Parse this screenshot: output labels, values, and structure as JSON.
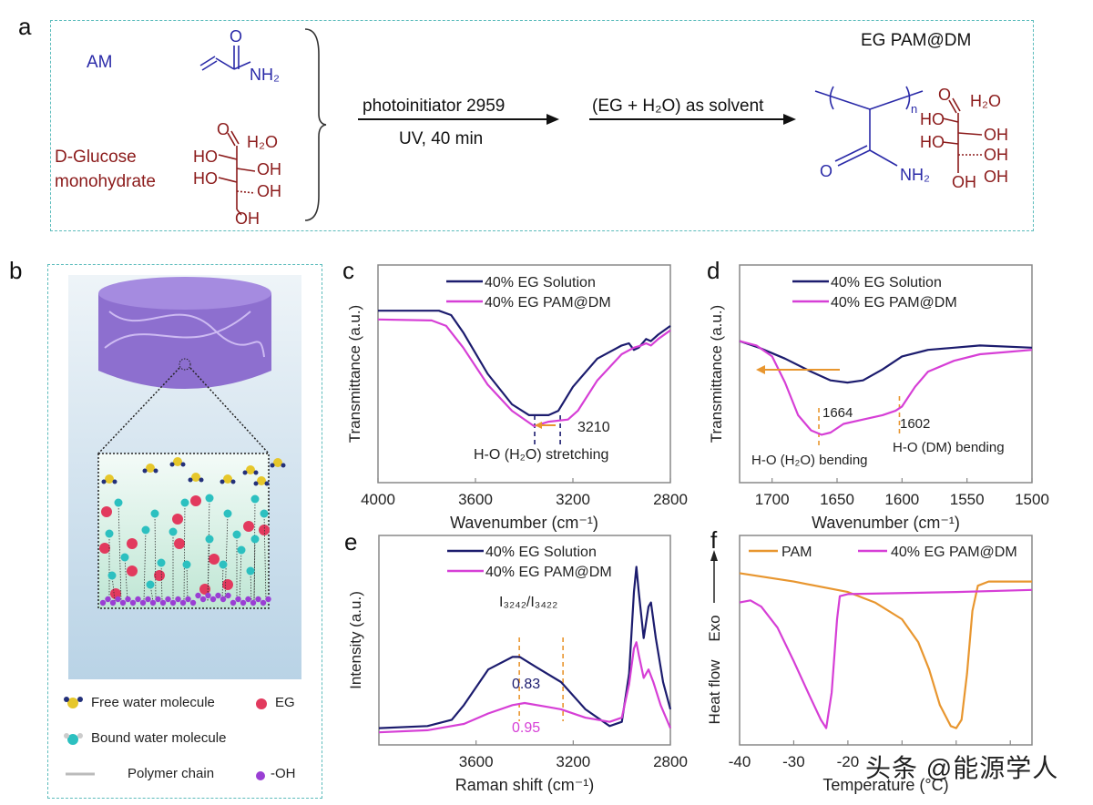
{
  "panels": {
    "a": "a",
    "b": "b",
    "c": "c",
    "d": "d",
    "e": "e",
    "f": "f"
  },
  "scheme": {
    "am_label": "AM",
    "glucose_label_1": "D-Glucose",
    "glucose_label_2": "monohydrate",
    "am_atoms": {
      "o": "O",
      "nh2": "NH₂"
    },
    "glucose_atoms": {
      "o": "O",
      "h2o": "H₂O",
      "ho1": "HO",
      "oh1": "OH",
      "ho2": "HO",
      "oh2": "OH",
      "oh3": "OH"
    },
    "step1_top": "photoinitiator 2959",
    "step1_bottom": "UV, 40 min",
    "step2_top": "(EG + H₂O) as solvent",
    "product_title": "EG PAM@DM",
    "pam_atoms": {
      "n": "n",
      "o": "O",
      "nh2": "NH₂"
    },
    "product_glucose_atoms": {
      "o": "O",
      "h2o": "H₂O",
      "ho1": "HO",
      "oh1": "OH",
      "ho2": "HO",
      "oh2": "OH",
      "oh3": "OH",
      "oh4": "OH"
    },
    "colors": {
      "monomer": "#2a2aa8",
      "glucose": "#8b1a1a",
      "box": "#5cbcbc"
    }
  },
  "illustration_legend": {
    "free_water": "Free water molecule",
    "eg": "EG",
    "bound_water": "Bound water molecule",
    "polymer_chain": "Polymer chain",
    "oh": "-OH"
  },
  "watermark": "头条 @能源学人",
  "chart_data": [
    {
      "panel": "c",
      "type": "line",
      "xlabel": "Wavenumber (cm⁻¹)",
      "ylabel": "Transmittance (a.u.)",
      "xlim": [
        4000,
        2800
      ],
      "ylim": [
        0,
        1
      ],
      "x_reversed": true,
      "xticks": [
        4000,
        3600,
        3200,
        2800
      ],
      "legend": "top-center",
      "series": [
        {
          "name": "40% EG Solution",
          "color": "#1c1c6e",
          "x": [
            4000,
            3750,
            3700,
            3650,
            3550,
            3450,
            3380,
            3300,
            3260,
            3200,
            3100,
            3000,
            2970,
            2950,
            2930,
            2900,
            2880,
            2850,
            2800
          ],
          "y": [
            0.79,
            0.79,
            0.77,
            0.69,
            0.5,
            0.36,
            0.31,
            0.31,
            0.33,
            0.44,
            0.57,
            0.63,
            0.64,
            0.61,
            0.62,
            0.66,
            0.65,
            0.68,
            0.72
          ]
        },
        {
          "name": "40% EG PAM@DM",
          "color": "#d63fd6",
          "x": [
            4000,
            3780,
            3720,
            3650,
            3550,
            3450,
            3360,
            3300,
            3220,
            3180,
            3100,
            3000,
            2950,
            2920,
            2900,
            2880,
            2850,
            2800
          ],
          "y": [
            0.75,
            0.745,
            0.72,
            0.62,
            0.45,
            0.33,
            0.26,
            0.28,
            0.29,
            0.33,
            0.47,
            0.59,
            0.62,
            0.63,
            0.64,
            0.63,
            0.66,
            0.7
          ]
        }
      ],
      "markers": [
        {
          "x": 3357,
          "color": "#1c1c6e"
        },
        {
          "x": 3252,
          "color": "#1c1c6e"
        }
      ],
      "annotations": {
        "peak": "3210",
        "band": "H-O (H₂O) stretching"
      },
      "arrow_color": "#e8962f"
    },
    {
      "panel": "d",
      "type": "line",
      "xlabel": "Wavenumber (cm⁻¹)",
      "ylabel": "Transmittance (a.u.)",
      "xlim": [
        1725,
        1500
      ],
      "ylim": [
        0,
        1
      ],
      "x_reversed": true,
      "xticks": [
        1700,
        1650,
        1600,
        1550,
        1500
      ],
      "legend": "top-center",
      "series": [
        {
          "name": "40% EG Solution",
          "color": "#1c1c6e",
          "x": [
            1725,
            1710,
            1690,
            1670,
            1655,
            1642,
            1630,
            1615,
            1600,
            1580,
            1560,
            1540,
            1500
          ],
          "y": [
            0.65,
            0.62,
            0.57,
            0.51,
            0.47,
            0.46,
            0.47,
            0.52,
            0.58,
            0.61,
            0.62,
            0.63,
            0.62
          ]
        },
        {
          "name": "40% EG PAM@DM",
          "color": "#d63fd6",
          "x": [
            1725,
            1712,
            1700,
            1690,
            1680,
            1670,
            1662,
            1655,
            1645,
            1630,
            1615,
            1605,
            1600,
            1590,
            1580,
            1560,
            1540,
            1520,
            1500
          ],
          "y": [
            0.65,
            0.63,
            0.58,
            0.46,
            0.31,
            0.24,
            0.22,
            0.23,
            0.27,
            0.29,
            0.31,
            0.33,
            0.35,
            0.44,
            0.51,
            0.56,
            0.59,
            0.6,
            0.61
          ]
        }
      ],
      "markers": [
        {
          "x": 1664,
          "color": "#e8962f"
        },
        {
          "x": 1602,
          "color": "#e8962f"
        }
      ],
      "annotations": {
        "peak1": "1664",
        "peak2": "1602",
        "band1": "H-O (H₂O) bending",
        "band2": "H-O (DM) bending"
      },
      "arrow_color": "#e8962f"
    },
    {
      "panel": "e",
      "type": "line",
      "xlabel": "Raman shift (cm⁻¹)",
      "ylabel": "Intensity (a.u.)",
      "xlim": [
        4000,
        2800
      ],
      "ylim": [
        0,
        1
      ],
      "x_reversed": true,
      "xticks": [
        3600,
        3200,
        2800
      ],
      "legend": "top-center",
      "series": [
        {
          "name": "40% EG Solution",
          "color": "#1c1c6e",
          "x": [
            4000,
            3800,
            3700,
            3650,
            3550,
            3450,
            3420,
            3350,
            3250,
            3150,
            3050,
            3000,
            2970,
            2950,
            2940,
            2930,
            2910,
            2890,
            2880,
            2860,
            2830,
            2800
          ],
          "y": [
            0.08,
            0.09,
            0.12,
            0.19,
            0.36,
            0.42,
            0.42,
            0.37,
            0.3,
            0.17,
            0.09,
            0.11,
            0.34,
            0.73,
            0.85,
            0.73,
            0.51,
            0.66,
            0.68,
            0.51,
            0.3,
            0.17
          ]
        },
        {
          "name": "40% EG PAM@DM",
          "color": "#d63fd6",
          "x": [
            4000,
            3800,
            3650,
            3550,
            3450,
            3400,
            3300,
            3250,
            3150,
            3050,
            3000,
            2970,
            2950,
            2940,
            2930,
            2910,
            2890,
            2870,
            2840,
            2800
          ],
          "y": [
            0.06,
            0.07,
            0.1,
            0.15,
            0.19,
            0.2,
            0.18,
            0.17,
            0.13,
            0.11,
            0.13,
            0.29,
            0.46,
            0.49,
            0.43,
            0.32,
            0.36,
            0.3,
            0.19,
            0.08
          ]
        }
      ],
      "markers": [
        {
          "x": 3422,
          "color": "#e8962f"
        },
        {
          "x": 3242,
          "color": "#e8962f"
        }
      ],
      "annotations": {
        "ratio_label": "I₃₂₄₂/I₃₄₂₂",
        "ratio_solution": "0.83",
        "ratio_pam": "0.95"
      }
    },
    {
      "panel": "f",
      "type": "line",
      "xlabel": "Temperature (°C)",
      "ylabel": "Heat flow",
      "ylabel_arrow": "Exo",
      "xlim": [
        -40,
        14
      ],
      "ylim": [
        0,
        1
      ],
      "xticks": [
        -40,
        -30,
        -20,
        -10,
        0,
        10
      ],
      "xtick_labels_visible": [
        "-40",
        "-30",
        "-20"
      ],
      "legend": "top",
      "series": [
        {
          "name": "PAM",
          "color": "#e8962f",
          "x": [
            -40,
            -30,
            -20,
            -15,
            -10,
            -7,
            -5,
            -3,
            -1,
            0,
            1,
            2,
            3,
            4,
            6,
            14
          ],
          "y": [
            0.82,
            0.78,
            0.73,
            0.68,
            0.6,
            0.49,
            0.36,
            0.19,
            0.09,
            0.08,
            0.12,
            0.34,
            0.64,
            0.76,
            0.78,
            0.78
          ]
        },
        {
          "name": "40% EG PAM@DM",
          "color": "#d63fd6",
          "x": [
            -40,
            -38,
            -36,
            -33,
            -30,
            -27,
            -25,
            -24,
            -23,
            -22,
            -21.5,
            -20,
            0,
            14
          ],
          "y": [
            0.68,
            0.69,
            0.66,
            0.56,
            0.4,
            0.23,
            0.12,
            0.08,
            0.25,
            0.6,
            0.71,
            0.72,
            0.73,
            0.74
          ]
        }
      ]
    }
  ]
}
